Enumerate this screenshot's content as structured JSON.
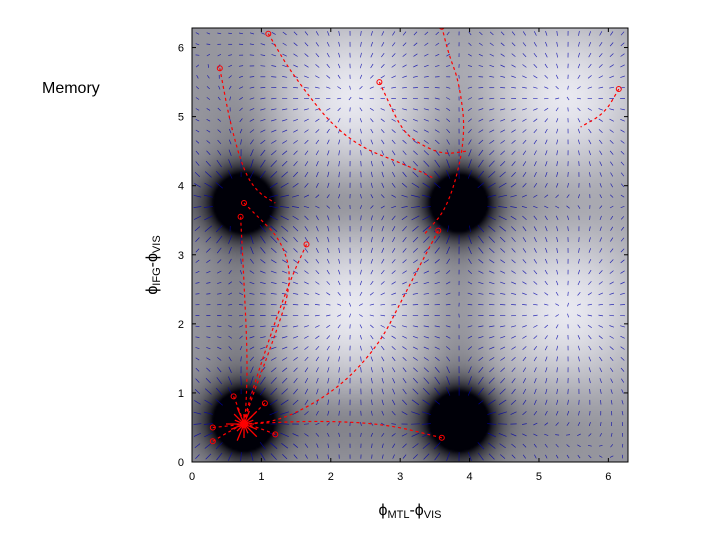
{
  "slide": {
    "label": "Memory"
  },
  "chart_data": {
    "type": "heatmap",
    "title": "",
    "xlabel": {
      "main": "ϕ",
      "sub1": "MTL",
      "dash": "-",
      "main2": "ϕ",
      "sub2": "VIS"
    },
    "ylabel": {
      "main": "ϕ",
      "sub1": "IFG",
      "dash": "-",
      "main2": "ϕ",
      "sub2": "VIS"
    },
    "xlim": [
      0,
      6.283
    ],
    "ylim": [
      0,
      6.283
    ],
    "xticks": [
      0,
      1,
      2,
      3,
      4,
      5,
      6
    ],
    "yticks": [
      0,
      1,
      2,
      3,
      4,
      5,
      6
    ],
    "grid": false,
    "legend": "none",
    "background": "potential landscape, grayscale (dark = minima)",
    "vector_field_color": "#0000aa",
    "trajectory_color": "#ff0000",
    "minima": [
      {
        "x": 0.75,
        "y": 0.6
      },
      {
        "x": 3.85,
        "y": 0.6
      },
      {
        "x": 0.75,
        "y": 3.75
      },
      {
        "x": 3.85,
        "y": 3.75
      }
    ],
    "maxima": [
      {
        "x": 2.3,
        "y": 2.2
      },
      {
        "x": 5.4,
        "y": 2.2
      },
      {
        "x": 2.3,
        "y": 5.3
      },
      {
        "x": 5.4,
        "y": 5.3
      }
    ],
    "attractor": {
      "x": 0.75,
      "y": 0.55
    },
    "trajectories": [
      [
        [
          0.75,
          3.75
        ],
        [
          0.9,
          3.6
        ],
        [
          1.3,
          3.2
        ],
        [
          1.45,
          2.6
        ],
        [
          1.15,
          1.7
        ],
        [
          0.85,
          0.9
        ],
        [
          0.75,
          0.55
        ]
      ],
      [
        [
          1.65,
          3.15
        ],
        [
          1.4,
          2.6
        ],
        [
          1.05,
          1.6
        ],
        [
          0.8,
          0.8
        ],
        [
          0.75,
          0.55
        ]
      ],
      [
        [
          0.7,
          3.55
        ],
        [
          0.75,
          2.6
        ],
        [
          0.8,
          1.5
        ],
        [
          0.78,
          0.8
        ],
        [
          0.75,
          0.55
        ]
      ],
      [
        [
          0.4,
          5.7
        ],
        [
          0.55,
          4.9
        ],
        [
          0.75,
          4.2
        ],
        [
          0.95,
          3.9
        ],
        [
          1.2,
          3.75
        ]
      ],
      [
        [
          1.1,
          6.2
        ],
        [
          1.45,
          5.6
        ],
        [
          2.2,
          4.65
        ],
        [
          3.2,
          4.25
        ],
        [
          3.5,
          4.1
        ]
      ],
      [
        [
          3.6,
          6.3
        ],
        [
          3.7,
          5.9
        ],
        [
          3.85,
          5.5
        ],
        [
          3.95,
          4.7
        ],
        [
          3.7,
          3.7
        ],
        [
          3.35,
          3.3
        ]
      ],
      [
        [
          2.7,
          5.5
        ],
        [
          3.0,
          4.85
        ],
        [
          3.2,
          4.65
        ],
        [
          3.6,
          4.45
        ],
        [
          3.95,
          4.5
        ]
      ],
      [
        [
          6.15,
          5.4
        ],
        [
          5.95,
          5.05
        ],
        [
          5.6,
          4.85
        ]
      ],
      [
        [
          3.55,
          3.35
        ],
        [
          3.05,
          2.4
        ],
        [
          2.7,
          1.7
        ],
        [
          2.1,
          1.05
        ],
        [
          1.3,
          0.6
        ],
        [
          0.75,
          0.55
        ]
      ],
      [
        [
          3.6,
          0.35
        ],
        [
          2.8,
          0.55
        ],
        [
          1.8,
          0.6
        ],
        [
          0.75,
          0.55
        ]
      ],
      [
        [
          0.3,
          0.5
        ],
        [
          0.5,
          0.52
        ],
        [
          0.75,
          0.55
        ]
      ],
      [
        [
          0.3,
          0.3
        ],
        [
          0.55,
          0.45
        ],
        [
          0.75,
          0.55
        ]
      ],
      [
        [
          0.6,
          0.95
        ],
        [
          0.7,
          0.7
        ],
        [
          0.75,
          0.55
        ]
      ],
      [
        [
          1.05,
          0.85
        ],
        [
          0.85,
          0.65
        ],
        [
          0.75,
          0.55
        ]
      ],
      [
        [
          1.2,
          0.4
        ],
        [
          0.95,
          0.5
        ],
        [
          0.75,
          0.55
        ]
      ]
    ]
  }
}
